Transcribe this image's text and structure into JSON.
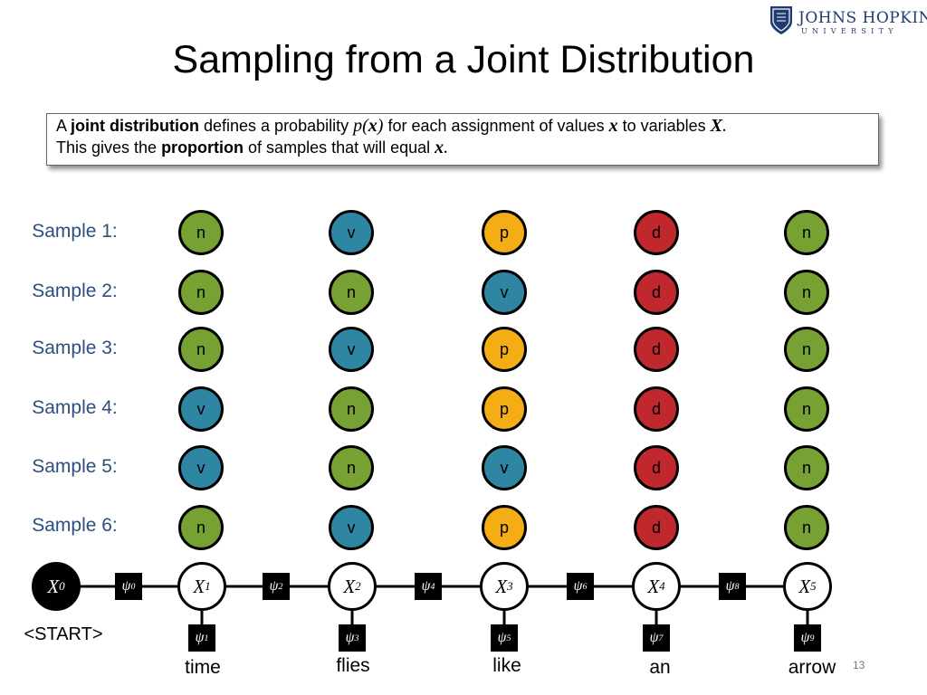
{
  "logo": {
    "main": "JOHNS HOPKINS",
    "sub": "UNIVERSITY",
    "color": "#1f3b73"
  },
  "title": "Sampling from a Joint Distribution",
  "definition": {
    "l1a": "A ",
    "l1b": "joint distribution",
    "l1c": " defines a probability ",
    "l1d": "p",
    "l1e": "(",
    "l1f": "x",
    "l1g": ")",
    "l1h": " for each assignment of values ",
    "l1i": "x",
    "l1j": " to variables ",
    "l1k": "X",
    "l1l": ".",
    "l2a": "This gives the ",
    "l2b": "proportion",
    "l2c": " of samples that will equal ",
    "l2d": "x",
    "l2e": "."
  },
  "samples": [
    {
      "label": "Sample 1:",
      "tags": [
        "n",
        "v",
        "p",
        "d",
        "n"
      ]
    },
    {
      "label": "Sample 2:",
      "tags": [
        "n",
        "n",
        "v",
        "d",
        "n"
      ]
    },
    {
      "label": "Sample 3:",
      "tags": [
        "n",
        "v",
        "p",
        "d",
        "n"
      ]
    },
    {
      "label": "Sample 4:",
      "tags": [
        "v",
        "n",
        "p",
        "d",
        "n"
      ]
    },
    {
      "label": "Sample 5:",
      "tags": [
        "v",
        "n",
        "v",
        "d",
        "n"
      ]
    },
    {
      "label": "Sample 6:",
      "tags": [
        "n",
        "v",
        "p",
        "d",
        "n"
      ]
    }
  ],
  "tag_colors": {
    "n": "#77a132",
    "v": "#2e86a3",
    "p": "#f5ad16",
    "d": "#c0282d"
  },
  "chain": {
    "start": {
      "var": "X",
      "sub": "0",
      "label": "<START>"
    },
    "variables": [
      {
        "var": "X",
        "sub": "1",
        "word": "time"
      },
      {
        "var": "X",
        "sub": "2",
        "word": "flies"
      },
      {
        "var": "X",
        "sub": "3",
        "word": "like"
      },
      {
        "var": "X",
        "sub": "4",
        "word": "an"
      },
      {
        "var": "X",
        "sub": "5",
        "word": "arrow"
      }
    ],
    "transition_factors": [
      {
        "sym": "ψ",
        "sub": "0"
      },
      {
        "sym": "ψ",
        "sub": "2"
      },
      {
        "sym": "ψ",
        "sub": "4"
      },
      {
        "sym": "ψ",
        "sub": "6"
      },
      {
        "sym": "ψ",
        "sub": "8"
      }
    ],
    "emission_factors": [
      {
        "sym": "ψ",
        "sub": "1"
      },
      {
        "sym": "ψ",
        "sub": "3"
      },
      {
        "sym": "ψ",
        "sub": "5"
      },
      {
        "sym": "ψ",
        "sub": "7"
      },
      {
        "sym": "ψ",
        "sub": "9"
      }
    ]
  },
  "page_number": "13"
}
